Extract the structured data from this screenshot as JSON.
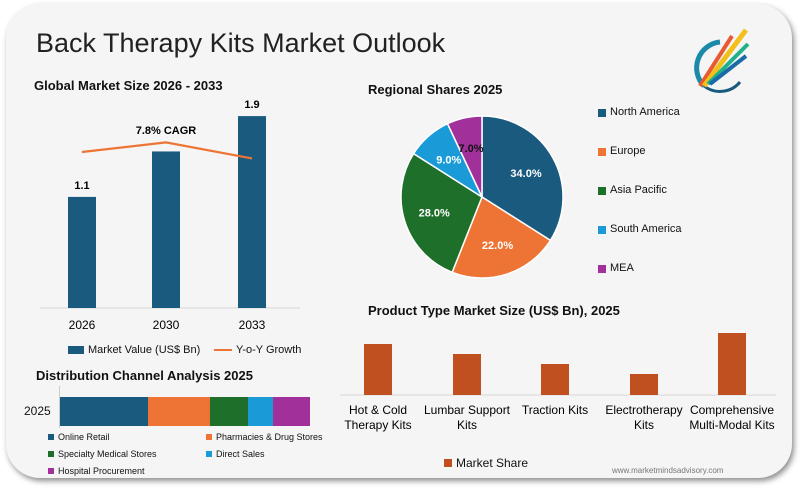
{
  "title": "Back Therapy Kits Market Outlook",
  "watermark": "www.marketmindsadvisory.com",
  "colors": {
    "navy": "#1a5a7e",
    "orange": "#ed7434",
    "green": "#1e6f2a",
    "sky": "#1a9ad6",
    "purple": "#a1309a",
    "rust": "#c0501f"
  },
  "chart_data": [
    {
      "type": "bar",
      "title": "Global Market Size 2026 - 2033",
      "categories": [
        "2026",
        "2030",
        "2033"
      ],
      "series": [
        {
          "name": "Market Value (US$ Bn)",
          "values": [
            1.1,
            1.55,
            1.9
          ],
          "data_labels": [
            "1.1",
            "",
            "1.9"
          ]
        },
        {
          "name": "Y-o-Y Growth",
          "type": "line",
          "values": [
            7.8,
            8.4,
            7.4
          ]
        }
      ],
      "annotation": "7.8% CAGR",
      "grid": false
    },
    {
      "type": "pie",
      "title": "Regional Shares 2025",
      "categories": [
        "North America",
        "Europe",
        "Asia Pacific",
        "South America",
        "MEA"
      ],
      "values": [
        34.0,
        22.0,
        28.0,
        9.0,
        7.0
      ],
      "data_labels": [
        "34.0%",
        "22.0%",
        "28.0%",
        "9.0%",
        "7.0%"
      ],
      "legend": "right"
    },
    {
      "type": "bar",
      "orientation": "horizontal-stacked",
      "title": "Distribution Channel Analysis 2025",
      "categories": [
        "2025"
      ],
      "series": [
        {
          "name": "Online Retail",
          "values": [
            35
          ]
        },
        {
          "name": "Pharmacies & Drug Stores",
          "values": [
            25
          ]
        },
        {
          "name": "Specialty Medical Stores",
          "values": [
            15
          ]
        },
        {
          "name": "Direct Sales",
          "values": [
            10
          ]
        },
        {
          "name": "Hospital Procurement",
          "values": [
            15
          ]
        }
      ],
      "legend": "bottom"
    },
    {
      "type": "bar",
      "title": "Product Type Market Size (US$ Bn), 2025",
      "categories": [
        "Hot & Cold Therapy Kits",
        "Lumbar Support Kits",
        "Traction Kits",
        "Electrotherapy Kits",
        "Comprehensive Multi-Modal Kits"
      ],
      "series": [
        {
          "name": "Market Share",
          "values": [
            0.51,
            0.41,
            0.31,
            0.21,
            0.62
          ]
        }
      ],
      "legend": "bottom"
    }
  ]
}
